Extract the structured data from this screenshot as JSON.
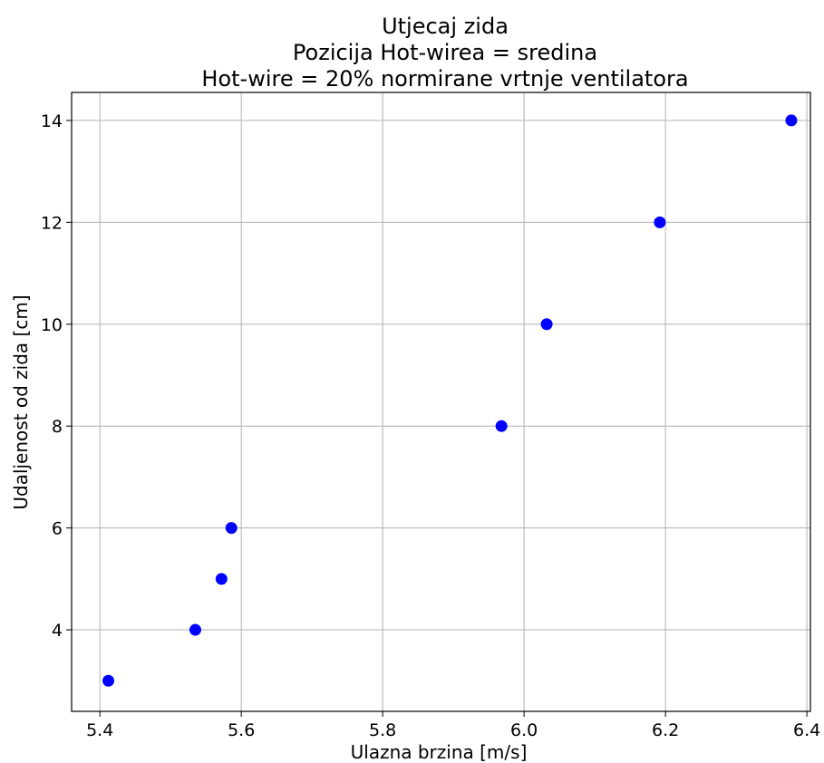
{
  "chart_data": {
    "type": "scatter",
    "title_lines": [
      "Utjecaj zida",
      "Pozicija Hot-wirea = sredina",
      "Hot-wire = 20% normirane vrtnje ventilatora"
    ],
    "xlabel": "Ulazna brzina [m/s]",
    "ylabel": "Udaljenost od zida [cm]",
    "xlim": [
      5.36,
      6.405
    ],
    "ylim": [
      2.4,
      14.55
    ],
    "xticks": [
      5.4,
      5.6,
      5.8,
      6.0,
      6.2,
      6.4
    ],
    "xtick_labels": [
      "5.4",
      "5.6",
      "5.8",
      "6.0",
      "6.2",
      "6.4"
    ],
    "yticks": [
      4,
      6,
      8,
      10,
      12,
      14
    ],
    "ytick_labels": [
      "4",
      "6",
      "8",
      "10",
      "12",
      "14"
    ],
    "grid": true,
    "marker_color": "#0000ff",
    "series": [
      {
        "x": [
          5.412,
          5.535,
          5.572,
          5.586,
          5.968,
          6.032,
          6.192,
          6.378
        ],
        "y": [
          3,
          4,
          5,
          6,
          8,
          10,
          12,
          14
        ]
      }
    ]
  }
}
